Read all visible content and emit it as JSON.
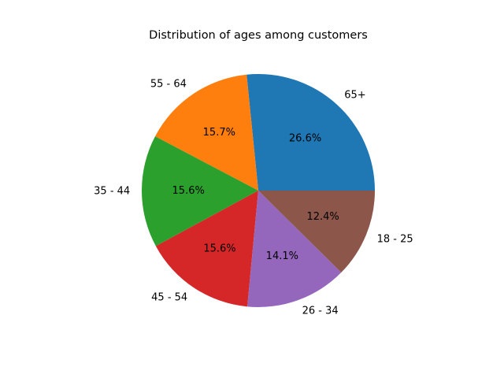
{
  "chart_data": {
    "type": "pie",
    "title": "Distribution of ages among customers",
    "categories": [
      "65+",
      "55 - 64",
      "35 - 44",
      "45 - 54",
      "26 - 34",
      "18 - 25"
    ],
    "values": [
      26.6,
      15.7,
      15.6,
      15.6,
      14.1,
      12.4
    ],
    "value_labels": [
      "26.6%",
      "15.7%",
      "15.6%",
      "15.6%",
      "14.1%",
      "12.4%"
    ],
    "colors": [
      "#1f77b4",
      "#ff7f0e",
      "#2ca02c",
      "#d62728",
      "#9467bd",
      "#8c564b"
    ],
    "start_angle_deg": 0,
    "direction": "counterclockwise",
    "legend": "none"
  }
}
